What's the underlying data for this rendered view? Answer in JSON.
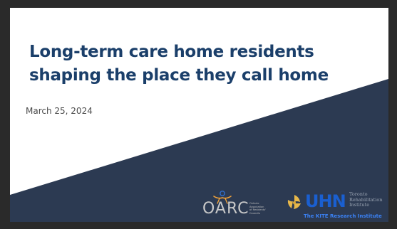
{
  "slide": {
    "title_lines": [
      "Long-term care home residents",
      "shaping the place they call home"
    ],
    "date": "March 25, 2024"
  },
  "logos": {
    "oarc": {
      "letters": "OARC",
      "tagline": [
        "Ontario",
        "Association",
        "of Residents'",
        "Councils"
      ],
      "accent_color": "#2f6fcf",
      "figure_color": "#f2a33a"
    },
    "uhn": {
      "wordmark": "UHN",
      "institute": [
        "Toronto",
        "Rehabilitation",
        "Institute"
      ],
      "band": "The KITE Research Institute",
      "brand_color": "#1a5fd0",
      "emblem_color": "#e8b84a"
    }
  },
  "colors": {
    "title": "#1b3f6a",
    "dark_band": "#2c3a52",
    "background": "#ffffff"
  }
}
